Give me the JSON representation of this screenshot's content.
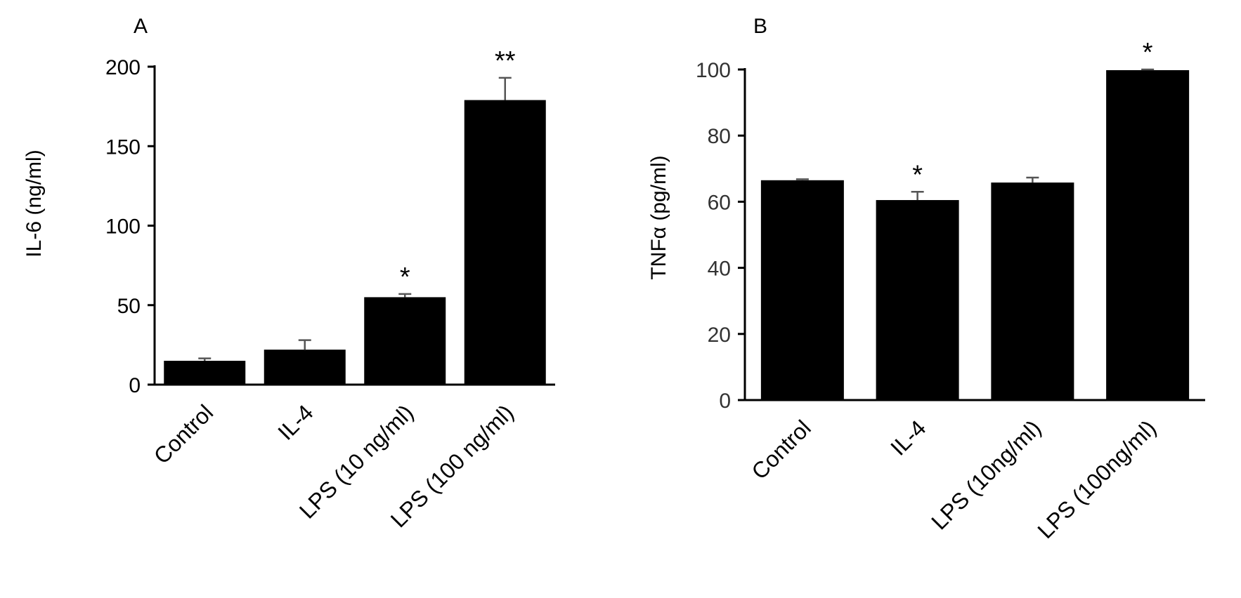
{
  "chart_data": [
    {
      "type": "bar",
      "panel_label": "A",
      "ylabel": "IL-6 (ng/ml)",
      "xlabel": "",
      "categories": [
        "Control",
        "IL-4",
        "LPS (10 ng/ml)",
        "LPS (100 ng/ml)"
      ],
      "values": [
        15,
        22,
        55,
        179
      ],
      "errors": [
        1.5,
        6,
        2,
        14
      ],
      "significance": [
        "",
        "",
        "*",
        "**"
      ],
      "ylim": [
        0,
        200
      ],
      "yticks": [
        "0",
        "50",
        "100",
        "150",
        "200"
      ],
      "bar_color": "#000000",
      "grid": false,
      "legend": "none"
    },
    {
      "type": "bar",
      "panel_label": "B",
      "ylabel": "TNFα (pg/ml)",
      "xlabel": "",
      "categories": [
        "Control",
        "IL-4",
        "LPS (10ng/ml)",
        "LPS (100ng/ml)"
      ],
      "values": [
        66.5,
        60.5,
        65.8,
        99.8
      ],
      "errors": [
        0.3,
        2.5,
        1.5,
        0.2
      ],
      "significance": [
        "",
        "*",
        "",
        "*"
      ],
      "ylim": [
        0,
        100
      ],
      "yticks": [
        "0",
        "20",
        "40",
        "60",
        "80",
        "100"
      ],
      "bar_color": "#000000",
      "grid": false,
      "legend": "none"
    }
  ]
}
